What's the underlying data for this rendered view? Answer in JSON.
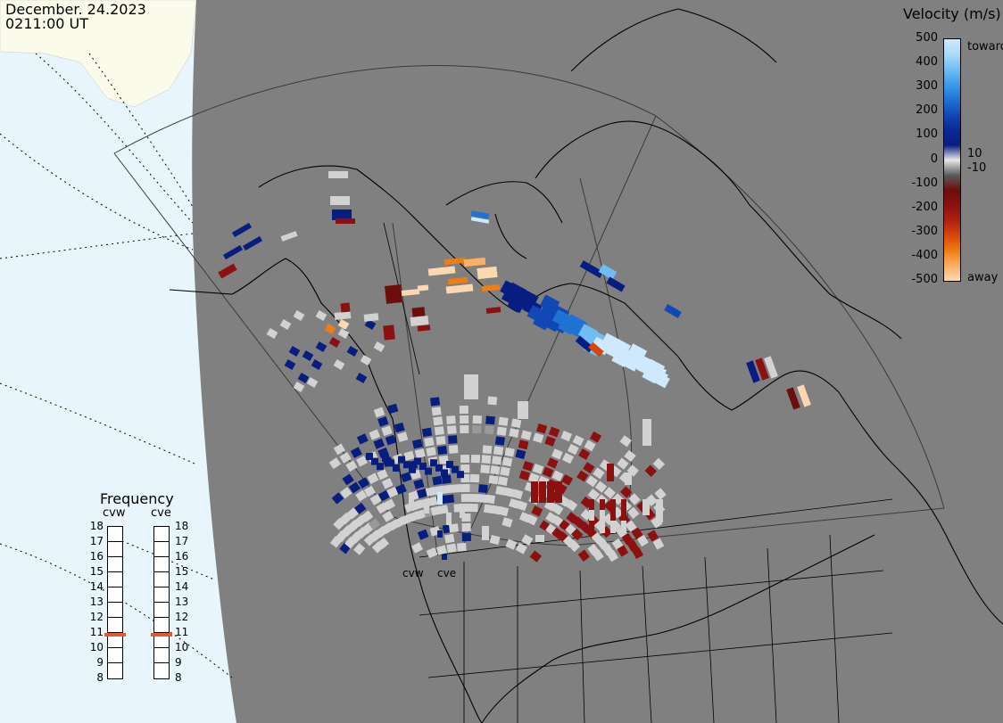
{
  "header": {
    "date": "December. 24.2023",
    "time": "0211:00 UT"
  },
  "colorbar": {
    "title": "Velocity (m/s)",
    "ticks": [
      "500",
      "400",
      "300",
      "200",
      "100",
      "0",
      "-100",
      "-200",
      "-300",
      "-400",
      "-500"
    ],
    "toward_label": "toward",
    "away_label": "away",
    "pos10_label": "10",
    "neg10_label": "-10",
    "colors": [
      "#cde9fb",
      "#a9dcfb",
      "#6fbdf5",
      "#3d9ae8",
      "#1f73d5",
      "#1148b5",
      "#0b2a96",
      "#081d80",
      "#e8e8e8",
      "#5a5a5a",
      "#6e0d0d",
      "#8c1010",
      "#b02010",
      "#d9460a",
      "#f07d10",
      "#fbb066",
      "#fcd8b0"
    ]
  },
  "frequency": {
    "title": "Frequency",
    "radars": [
      {
        "name": "cvw",
        "value_mhz": 10.8
      },
      {
        "name": "cve",
        "value_mhz": 10.8
      }
    ],
    "ticks": [
      "18",
      "17",
      "16",
      "15",
      "14",
      "13",
      "12",
      "11",
      "10",
      "9",
      "8"
    ],
    "marker_color": "#e05a2b"
  },
  "map": {
    "radar_sites": [
      {
        "label": "cvw"
      },
      {
        "label": "cve"
      }
    ],
    "colors": {
      "land_gray": "#808080",
      "ocean_light": "#e9f5fc",
      "land_light": "#fbfbeb",
      "no_data_gray": "#d2d2d2"
    }
  }
}
